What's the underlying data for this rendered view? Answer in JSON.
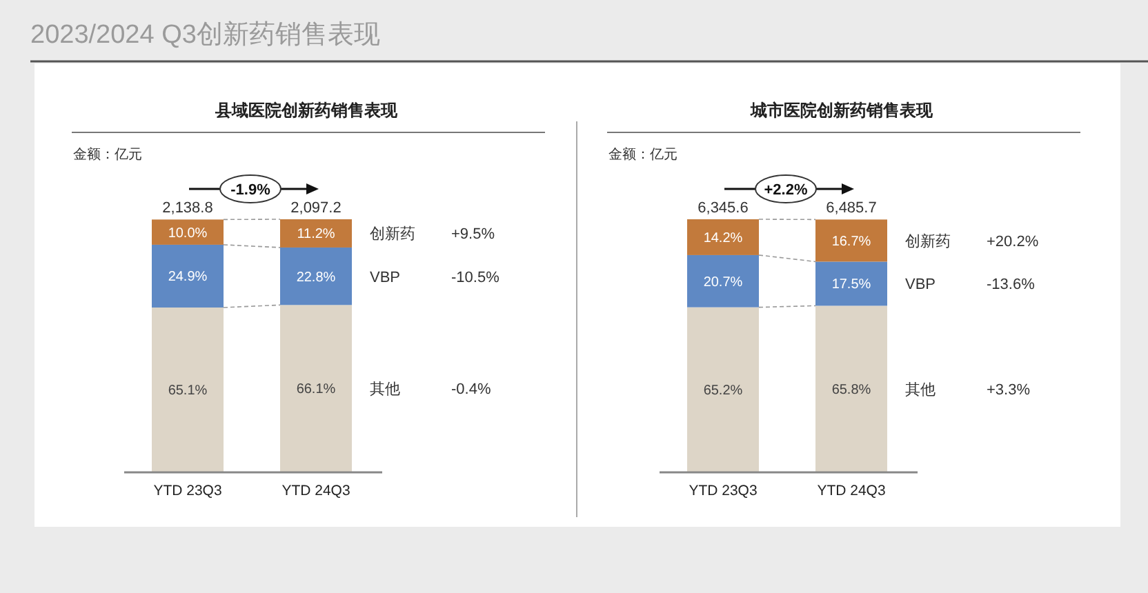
{
  "chart_data": [
    {
      "type": "other",
      "title": "2023/2024 Q3创新药销售表现"
    },
    {
      "type": "bar",
      "stacked": true,
      "title": "县域医院创新药销售表现",
      "subtitle": "金额：亿元",
      "categories": [
        "YTD 23Q3",
        "YTD 24Q3"
      ],
      "series": [
        {
          "name": "其他",
          "color": "#ddd5c7",
          "values": [
            65.1,
            66.1
          ],
          "value_labels": [
            "65.1%",
            "66.1%"
          ]
        },
        {
          "name": "VBP",
          "color": "#5f89c4",
          "values": [
            24.9,
            22.8
          ],
          "value_labels": [
            "24.9%",
            "22.8%"
          ]
        },
        {
          "name": "创新药",
          "color": "#c27a3c",
          "values": [
            10.0,
            11.2
          ],
          "value_labels": [
            "10.0%",
            "11.2%"
          ]
        }
      ],
      "annotations": [
        "-1.9%",
        "2,138.8",
        "2,097.2",
        "+9.5%",
        "-10.5%",
        "-0.4%"
      ]
    },
    {
      "type": "bar",
      "stacked": true,
      "title": "城市医院创新药销售表现",
      "subtitle": "金额：亿元",
      "categories": [
        "YTD 23Q3",
        "YTD 24Q3"
      ],
      "series": [
        {
          "name": "其他",
          "color": "#ddd5c7",
          "values": [
            65.2,
            65.8
          ],
          "value_labels": [
            "65.2%",
            "65.8%"
          ]
        },
        {
          "name": "VBP",
          "color": "#5f89c4",
          "values": [
            20.7,
            17.5
          ],
          "value_labels": [
            "20.7%",
            "17.5%"
          ]
        },
        {
          "name": "创新药",
          "color": "#c27a3c",
          "values": [
            14.2,
            16.7
          ],
          "value_labels": [
            "14.2%",
            "16.7%"
          ]
        }
      ],
      "annotations": [
        "+2.2%",
        "6,345.6",
        "6,485.7",
        "+20.2%",
        "-13.6%",
        "+3.3%"
      ]
    }
  ]
}
